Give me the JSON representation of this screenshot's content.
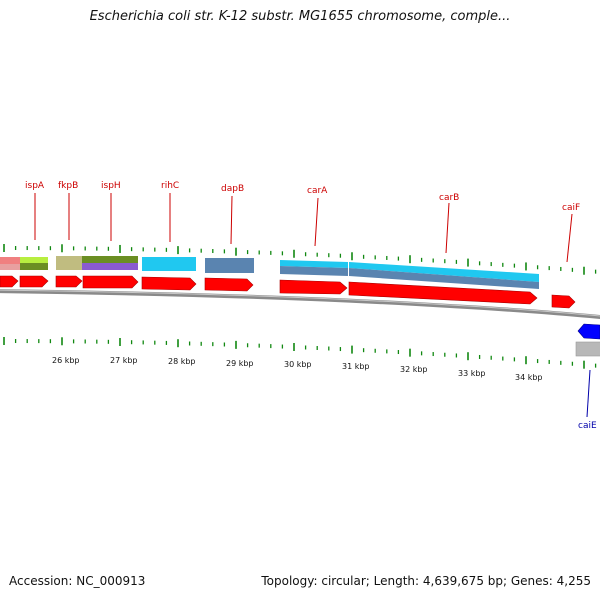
{
  "title": "Escherichia coli str. K-12 substr. MG1655 chromosome, comple...",
  "footer": {
    "accession": "Accession: NC_000913",
    "summary": "Topology: circular; Length: 4,639,675 bp; Genes: 4,255"
  },
  "colors": {
    "forward_gene": "#ff0000",
    "reverse_gene": "#0000ff",
    "forward_label": "#cc0000",
    "reverse_label": "#0000aa",
    "tick": "#118811",
    "backbone": "#888888"
  },
  "kbp_labels": [
    "26 kbp",
    "27 kbp",
    "28 kbp",
    "29 kbp",
    "30 kbp",
    "31 kbp",
    "32 kbp",
    "33 kbp",
    "34 kbp"
  ],
  "forward_genes": [
    {
      "name": "ispA"
    },
    {
      "name": "fkpB"
    },
    {
      "name": "ispH"
    },
    {
      "name": "rihC"
    },
    {
      "name": "dapB"
    },
    {
      "name": "carA"
    },
    {
      "name": "carB"
    },
    {
      "name": "caiF"
    }
  ],
  "reverse_genes": [
    {
      "name": "caiE"
    }
  ]
}
